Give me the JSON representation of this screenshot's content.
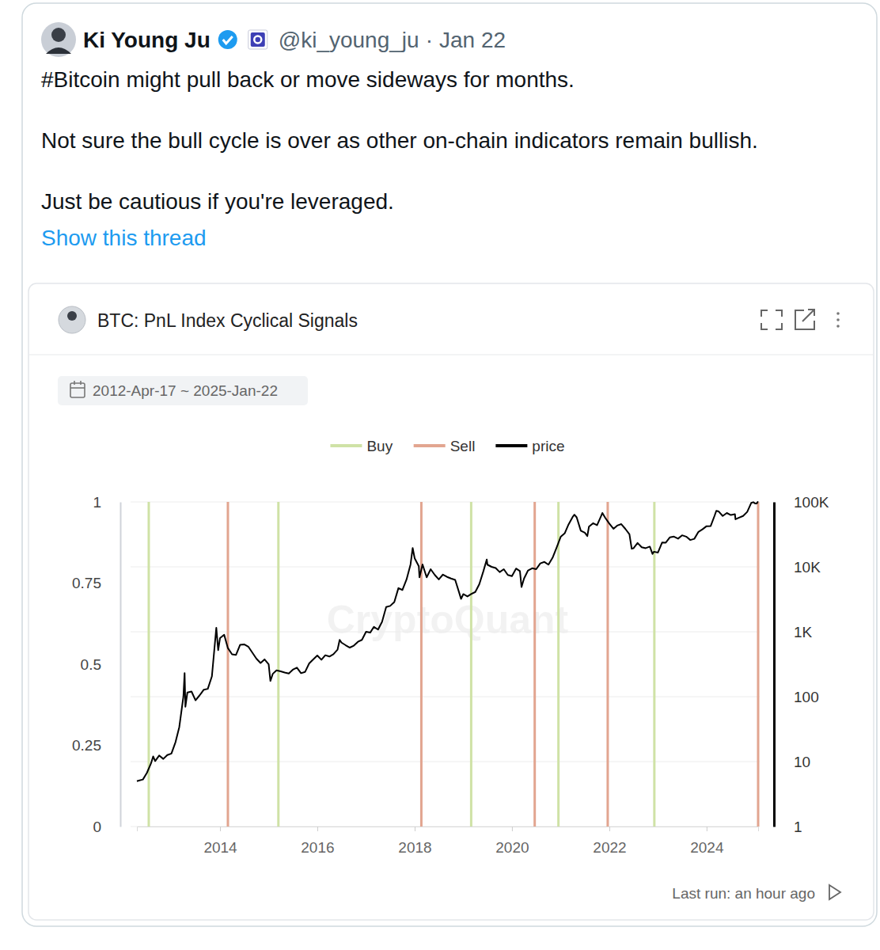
{
  "tweet": {
    "author": "Ki Young Ju",
    "handle": "@ki_young_ju",
    "separator": "·",
    "date": "Jan 22",
    "text": [
      "#Bitcoin might pull back or move sideways for months.",
      "Not sure the bull cycle is over as other on-chain indicators remain bullish.",
      "Just be cautious if you're leveraged."
    ],
    "show_thread": "Show this thread"
  },
  "card": {
    "watermark": "CryptoQuant",
    "last_run": "Last run: an hour ago"
  },
  "chart_data": {
    "type": "line",
    "title": "BTC: PnL Index Cyclical Signals",
    "subtitle": "2012-Apr-17 ~ 2025-Jan-22",
    "log": "y",
    "grid": true,
    "legend": "top",
    "xlim": [
      "2012-04-17",
      "2025-01-22"
    ],
    "xticks": [
      "2014",
      "2016",
      "2018",
      "2020",
      "2022",
      "2024"
    ],
    "ylim": [
      1,
      100000
    ],
    "yticks": [
      1,
      10,
      100,
      {
        "value": 1000,
        "label": "1K"
      },
      {
        "value": 10000,
        "label": "10K"
      },
      {
        "value": 100000,
        "label": "100K"
      }
    ],
    "y2lim": [
      0,
      1
    ],
    "y2ticks": [
      0,
      0.25,
      0.5,
      0.75,
      1
    ],
    "series": [
      {
        "name": "Buy",
        "type": "bar",
        "axis": "y2",
        "color": "#cfe2a6",
        "x": [
          "2012-07-15",
          "2015-03-15",
          "2019-03-01",
          "2020-12-15",
          "2022-12-05"
        ],
        "values": [
          1,
          1,
          1,
          1,
          1
        ]
      },
      {
        "name": "Sell",
        "type": "bar",
        "axis": "y2",
        "color": "#e2a590",
        "x": [
          "2014-03-01",
          "2018-02-20",
          "2020-06-20",
          "2021-12-20",
          "2025-01-22"
        ],
        "values": [
          1,
          1,
          1,
          1,
          1
        ]
      },
      {
        "name": "price",
        "type": "line",
        "color": "#000000",
        "x": [
          "2012-04-17",
          "2012-05-01",
          "2012-06-01",
          "2012-07-01",
          "2012-08-01",
          "2012-08-17",
          "2012-09-01",
          "2012-10-01",
          "2012-11-01",
          "2012-12-01",
          "2013-01-01",
          "2013-02-01",
          "2013-03-01",
          "2013-04-01",
          "2013-04-10",
          "2013-04-16",
          "2013-05-01",
          "2013-06-01",
          "2013-07-01",
          "2013-08-01",
          "2013-09-01",
          "2013-10-01",
          "2013-11-01",
          "2013-12-04",
          "2013-12-18",
          "2014-01-01",
          "2014-02-01",
          "2014-03-01",
          "2014-04-01",
          "2014-05-01",
          "2014-06-01",
          "2014-07-01",
          "2014-08-01",
          "2014-09-01",
          "2014-10-01",
          "2014-11-01",
          "2014-12-01",
          "2015-01-01",
          "2015-01-14",
          "2015-02-01",
          "2015-03-01",
          "2015-04-01",
          "2015-05-01",
          "2015-06-01",
          "2015-07-01",
          "2015-08-01",
          "2015-09-01",
          "2015-10-01",
          "2015-11-01",
          "2015-12-01",
          "2016-01-01",
          "2016-02-01",
          "2016-03-01",
          "2016-04-01",
          "2016-05-01",
          "2016-06-01",
          "2016-06-17",
          "2016-07-01",
          "2016-08-01",
          "2016-09-01",
          "2016-10-01",
          "2016-11-01",
          "2016-12-01",
          "2017-01-01",
          "2017-02-01",
          "2017-03-01",
          "2017-04-01",
          "2017-05-01",
          "2017-06-01",
          "2017-07-01",
          "2017-08-01",
          "2017-09-01",
          "2017-10-01",
          "2017-11-01",
          "2017-12-01",
          "2017-12-17",
          "2018-01-01",
          "2018-02-01",
          "2018-02-06",
          "2018-03-01",
          "2018-04-01",
          "2018-05-01",
          "2018-06-01",
          "2018-07-01",
          "2018-08-01",
          "2018-09-01",
          "2018-10-01",
          "2018-11-01",
          "2018-12-01",
          "2018-12-15",
          "2019-01-01",
          "2019-02-01",
          "2019-03-01",
          "2019-04-01",
          "2019-05-01",
          "2019-06-01",
          "2019-06-26",
          "2019-07-01",
          "2019-08-01",
          "2019-09-01",
          "2019-10-01",
          "2019-11-01",
          "2019-12-01",
          "2020-01-01",
          "2020-02-01",
          "2020-03-01",
          "2020-03-13",
          "2020-04-01",
          "2020-05-01",
          "2020-06-01",
          "2020-07-01",
          "2020-08-01",
          "2020-09-01",
          "2020-10-01",
          "2020-11-01",
          "2020-12-01",
          "2021-01-01",
          "2021-02-01",
          "2021-03-01",
          "2021-04-01",
          "2021-04-14",
          "2021-05-01",
          "2021-06-01",
          "2021-07-01",
          "2021-07-20",
          "2021-08-01",
          "2021-09-01",
          "2021-10-01",
          "2021-11-01",
          "2021-11-10",
          "2021-12-01",
          "2022-01-01",
          "2022-02-01",
          "2022-03-01",
          "2022-04-01",
          "2022-05-01",
          "2022-06-01",
          "2022-06-18",
          "2022-07-01",
          "2022-08-01",
          "2022-09-01",
          "2022-10-01",
          "2022-11-01",
          "2022-11-21",
          "2022-12-01",
          "2023-01-01",
          "2023-02-01",
          "2023-03-01",
          "2023-04-01",
          "2023-05-01",
          "2023-06-01",
          "2023-07-01",
          "2023-08-01",
          "2023-09-01",
          "2023-10-01",
          "2023-11-01",
          "2023-12-01",
          "2024-01-01",
          "2024-02-01",
          "2024-03-01",
          "2024-03-14",
          "2024-04-01",
          "2024-05-01",
          "2024-06-01",
          "2024-07-01",
          "2024-08-01",
          "2024-08-05",
          "2024-09-01",
          "2024-10-01",
          "2024-11-01",
          "2024-12-01",
          "2024-12-17",
          "2025-01-01",
          "2025-01-10",
          "2025-01-20",
          "2025-01-22"
        ],
        "values": [
          5.0,
          5.1,
          5.3,
          6.7,
          9.4,
          12,
          10.2,
          12.4,
          11.0,
          12.6,
          13.3,
          20,
          34,
          100,
          230,
          70,
          116,
          120,
          88,
          105,
          128,
          132,
          206,
          1150,
          520,
          800,
          900,
          560,
          450,
          440,
          630,
          640,
          590,
          475,
          385,
          330,
          375,
          315,
          175,
          225,
          255,
          245,
          235,
          228,
          260,
          280,
          230,
          240,
          325,
          375,
          430,
          370,
          435,
          415,
          450,
          530,
          750,
          680,
          620,
          570,
          610,
          700,
          750,
          1000,
          970,
          1190,
          1080,
          1420,
          2400,
          2500,
          2870,
          4700,
          4400,
          6400,
          10900,
          19500,
          13500,
          10200,
          6900,
          10900,
          6900,
          9200,
          7500,
          6400,
          7600,
          7000,
          6600,
          6300,
          4000,
          3200,
          3800,
          3500,
          3800,
          4100,
          5400,
          8600,
          13000,
          10800,
          10000,
          9600,
          8300,
          9200,
          7500,
          7200,
          9400,
          8600,
          4900,
          6600,
          8800,
          9500,
          9200,
          11300,
          11900,
          10800,
          13800,
          19700,
          29000,
          33000,
          45000,
          58800,
          63500,
          57800,
          36000,
          33500,
          29800,
          41500,
          47000,
          43800,
          61000,
          67500,
          57000,
          46300,
          38500,
          43200,
          45500,
          38500,
          31800,
          19000,
          19300,
          23300,
          20000,
          19400,
          20500,
          15800,
          17100,
          16600,
          23700,
          23600,
          28500,
          29200,
          27200,
          30600,
          29200,
          25900,
          27000,
          34600,
          37800,
          42300,
          42600,
          61200,
          73000,
          71300,
          60700,
          67500,
          62800,
          64600,
          54000,
          57300,
          60800,
          70200,
          96400,
          99000,
          94400,
          94500,
          100000,
          99500
        ]
      }
    ]
  }
}
